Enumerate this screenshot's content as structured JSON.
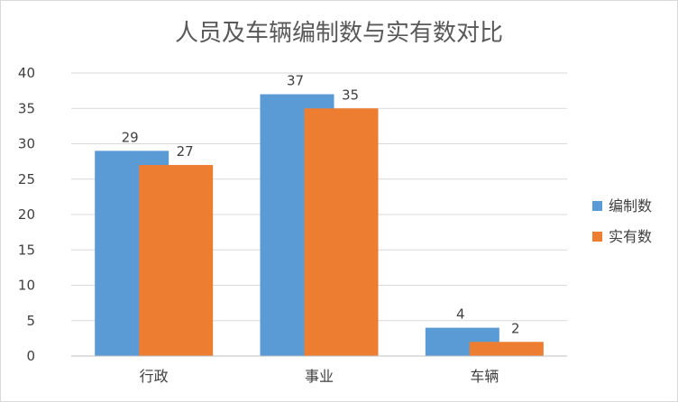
{
  "chart_data": {
    "type": "bar",
    "title": "人员及车辆编制数与实有数对比",
    "categories": [
      "行政",
      "事业",
      "车辆"
    ],
    "series": [
      {
        "name": "编制数",
        "values": [
          29,
          37,
          4
        ],
        "color": "#5B9BD5"
      },
      {
        "name": "实有数",
        "values": [
          27,
          35,
          2
        ],
        "color": "#ED7D31"
      }
    ],
    "ylim": [
      0,
      40
    ],
    "yticks": [
      0,
      5,
      10,
      15,
      20,
      25,
      30,
      35,
      40
    ],
    "grid": true,
    "legend": "right",
    "data_labels": true,
    "xlabel": "",
    "ylabel": ""
  }
}
